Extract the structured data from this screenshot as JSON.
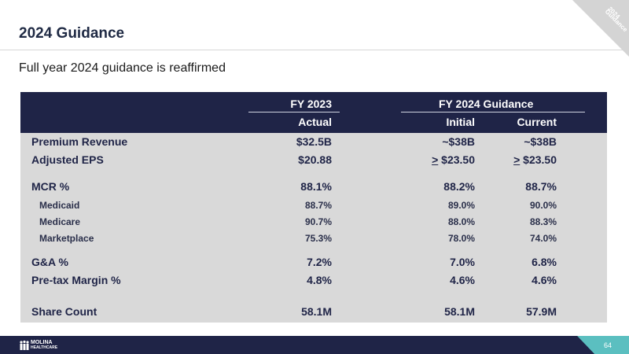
{
  "header": {
    "title": "2024 Guidance",
    "corner_tag_line1": "2024",
    "corner_tag_line2": "Guidance"
  },
  "subtitle": "Full year 2024 guidance is reaffirmed",
  "table": {
    "col_group_1": "FY 2023",
    "col_group_2": "FY 2024 Guidance",
    "col_actual": "Actual",
    "col_initial": "Initial",
    "col_current": "Current",
    "rows": [
      {
        "label": "Premium Revenue",
        "fy2023": "$32.5B",
        "initial": "~$38B",
        "current": "~$38B"
      },
      {
        "label": "Adjusted EPS",
        "fy2023": "$20.88",
        "initial_prefix": ">",
        "initial": " $23.50",
        "current_prefix": ">",
        "current": " $23.50"
      },
      {
        "label": "MCR %",
        "fy2023": "88.1%",
        "initial": "88.2%",
        "current": "88.7%"
      },
      {
        "label": "Medicaid",
        "fy2023": "88.7%",
        "initial": "89.0%",
        "current": "90.0%"
      },
      {
        "label": "Medicare",
        "fy2023": "90.7%",
        "initial": "88.0%",
        "current": "88.3%"
      },
      {
        "label": "Marketplace",
        "fy2023": "75.3%",
        "initial": "78.0%",
        "current": "74.0%"
      },
      {
        "label": "G&A %",
        "fy2023": "7.2%",
        "initial": "7.0%",
        "current": "6.8%"
      },
      {
        "label": "Pre-tax Margin %",
        "fy2023": "4.8%",
        "initial": "4.6%",
        "current": "4.6%"
      },
      {
        "label": "Share Count",
        "fy2023": "58.1M",
        "initial": "58.1M",
        "current": "57.9M"
      }
    ]
  },
  "footer": {
    "logo_line1": "MOLINA",
    "logo_line2": "HEALTHCARE",
    "page_number": "64"
  },
  "colors": {
    "navy": "#1f2447",
    "teal": "#5bbfc0",
    "table_bg": "#d9d9d9"
  }
}
